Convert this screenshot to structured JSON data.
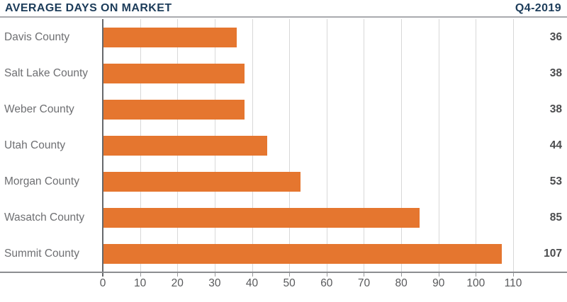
{
  "chart_data": {
    "type": "bar",
    "orientation": "horizontal",
    "title": "AVERAGE DAYS ON MARKET",
    "subtitle": "Q4-2019",
    "categories": [
      "Davis County",
      "Salt Lake County",
      "Weber County",
      "Utah County",
      "Morgan County",
      "Wasatch County",
      "Summit County"
    ],
    "values": [
      36,
      38,
      38,
      44,
      53,
      85,
      107
    ],
    "value_labels": [
      "36",
      "38",
      "38",
      "44",
      "53",
      "85",
      "107"
    ],
    "x_ticks": [
      0,
      10,
      20,
      30,
      40,
      50,
      60,
      70,
      80,
      90,
      100,
      110
    ],
    "xlim": [
      0,
      110
    ],
    "xlabel": "",
    "ylabel": "",
    "grid": true,
    "legend": "none",
    "value_labels_position": "right-margin"
  },
  "colors": {
    "bar": "#e5762f",
    "title_navy": "#1c3c5a",
    "category_label_gray": "#6e6f72",
    "value_label_dark": "#4b4c4e",
    "tick_label_gray": "#58595b",
    "gridline": "#d8d8d8",
    "axis": "#8b8d90",
    "header_rule": "#a9abae"
  }
}
